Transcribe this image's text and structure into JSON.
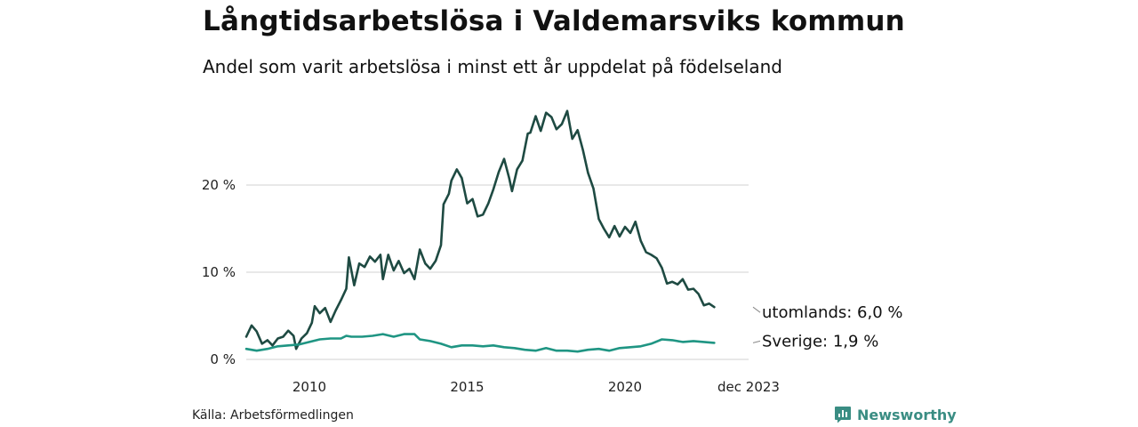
{
  "header": {
    "title": "Långtidsarbetslösa i Valdemarsviks kommun",
    "subtitle": "Andel som varit arbetslösa i minst ett år uppdelat på födelseland"
  },
  "footer": {
    "source": "Källa: Arbetsförmedlingen",
    "brand": "Newsworthy"
  },
  "colors": {
    "utomlands": "#1e4a42",
    "sverige": "#1f9583",
    "grid": "#d9d9d9",
    "brand": "#3a8d83"
  },
  "chart_data": {
    "type": "line",
    "title": "Långtidsarbetslösa i Valdemarsviks kommun",
    "subtitle": "Andel som varit arbetslösa i minst ett år uppdelat på födelseland",
    "xlabel": "",
    "ylabel": "",
    "x_range": [
      2008.0,
      2023.917
    ],
    "ylim": [
      0,
      30
    ],
    "y_ticks": [
      0,
      10,
      20
    ],
    "y_tick_labels": [
      "0 %",
      "10 %",
      "20 %"
    ],
    "x_ticks": [
      2010.0,
      2015.0,
      2020.0,
      2023.917
    ],
    "x_tick_labels": [
      "2010",
      "2015",
      "2020",
      "dec 2023"
    ],
    "grid": true,
    "series": [
      {
        "name": "utomlands",
        "end_label": "utomlands: 6,0 %",
        "points": [
          [
            2008.0,
            2.6
          ],
          [
            2008.17,
            3.9
          ],
          [
            2008.33,
            3.2
          ],
          [
            2008.5,
            1.8
          ],
          [
            2008.67,
            2.2
          ],
          [
            2008.83,
            1.6
          ],
          [
            2009.0,
            2.4
          ],
          [
            2009.17,
            2.6
          ],
          [
            2009.33,
            3.3
          ],
          [
            2009.5,
            2.7
          ],
          [
            2009.58,
            1.2
          ],
          [
            2009.75,
            2.4
          ],
          [
            2009.92,
            3.0
          ],
          [
            2010.08,
            4.2
          ],
          [
            2010.17,
            6.1
          ],
          [
            2010.33,
            5.3
          ],
          [
            2010.5,
            5.9
          ],
          [
            2010.67,
            4.3
          ],
          [
            2010.83,
            5.6
          ],
          [
            2011.0,
            6.8
          ],
          [
            2011.17,
            8.1
          ],
          [
            2011.25,
            11.7
          ],
          [
            2011.42,
            8.5
          ],
          [
            2011.58,
            11.0
          ],
          [
            2011.75,
            10.6
          ],
          [
            2011.92,
            11.8
          ],
          [
            2012.08,
            11.2
          ],
          [
            2012.25,
            12.0
          ],
          [
            2012.33,
            9.2
          ],
          [
            2012.5,
            12.0
          ],
          [
            2012.67,
            10.2
          ],
          [
            2012.83,
            11.3
          ],
          [
            2013.0,
            9.9
          ],
          [
            2013.17,
            10.4
          ],
          [
            2013.33,
            9.2
          ],
          [
            2013.5,
            12.6
          ],
          [
            2013.67,
            11.0
          ],
          [
            2013.83,
            10.4
          ],
          [
            2014.0,
            11.3
          ],
          [
            2014.17,
            13.1
          ],
          [
            2014.25,
            17.8
          ],
          [
            2014.42,
            19.0
          ],
          [
            2014.5,
            20.5
          ],
          [
            2014.67,
            21.8
          ],
          [
            2014.83,
            20.8
          ],
          [
            2015.0,
            17.9
          ],
          [
            2015.17,
            18.4
          ],
          [
            2015.33,
            16.4
          ],
          [
            2015.5,
            16.6
          ],
          [
            2015.67,
            17.9
          ],
          [
            2015.83,
            19.5
          ],
          [
            2016.0,
            21.5
          ],
          [
            2016.17,
            23.0
          ],
          [
            2016.33,
            20.8
          ],
          [
            2016.42,
            19.3
          ],
          [
            2016.58,
            21.8
          ],
          [
            2016.75,
            22.8
          ],
          [
            2016.92,
            25.9
          ],
          [
            2017.0,
            26.0
          ],
          [
            2017.17,
            27.9
          ],
          [
            2017.33,
            26.2
          ],
          [
            2017.5,
            28.3
          ],
          [
            2017.67,
            27.8
          ],
          [
            2017.83,
            26.4
          ],
          [
            2018.0,
            27.0
          ],
          [
            2018.17,
            28.5
          ],
          [
            2018.33,
            25.3
          ],
          [
            2018.5,
            26.3
          ],
          [
            2018.67,
            24.0
          ],
          [
            2018.83,
            21.4
          ],
          [
            2019.0,
            19.6
          ],
          [
            2019.17,
            16.1
          ],
          [
            2019.33,
            15.0
          ],
          [
            2019.5,
            14.0
          ],
          [
            2019.67,
            15.3
          ],
          [
            2019.83,
            14.1
          ],
          [
            2020.0,
            15.2
          ],
          [
            2020.17,
            14.5
          ],
          [
            2020.33,
            15.8
          ],
          [
            2020.5,
            13.6
          ],
          [
            2020.67,
            12.3
          ],
          [
            2020.83,
            12.0
          ],
          [
            2021.0,
            11.6
          ],
          [
            2021.17,
            10.5
          ],
          [
            2021.33,
            8.7
          ],
          [
            2021.5,
            8.9
          ],
          [
            2021.67,
            8.6
          ],
          [
            2021.83,
            9.2
          ],
          [
            2022.0,
            8.0
          ],
          [
            2022.17,
            8.1
          ],
          [
            2022.33,
            7.5
          ],
          [
            2022.5,
            6.2
          ],
          [
            2022.67,
            6.4
          ],
          [
            2022.83,
            6.0
          ]
        ]
      },
      {
        "name": "Sverige",
        "end_label": "Sverige: 1,9 %",
        "points": [
          [
            2008.0,
            1.2
          ],
          [
            2008.33,
            1.0
          ],
          [
            2008.67,
            1.2
          ],
          [
            2009.0,
            1.5
          ],
          [
            2009.33,
            1.6
          ],
          [
            2009.67,
            1.7
          ],
          [
            2010.0,
            2.0
          ],
          [
            2010.33,
            2.3
          ],
          [
            2010.67,
            2.4
          ],
          [
            2011.0,
            2.4
          ],
          [
            2011.17,
            2.7
          ],
          [
            2011.33,
            2.6
          ],
          [
            2011.67,
            2.6
          ],
          [
            2012.0,
            2.7
          ],
          [
            2012.33,
            2.9
          ],
          [
            2012.67,
            2.6
          ],
          [
            2013.0,
            2.9
          ],
          [
            2013.33,
            2.9
          ],
          [
            2013.5,
            2.3
          ],
          [
            2013.83,
            2.1
          ],
          [
            2014.17,
            1.8
          ],
          [
            2014.5,
            1.4
          ],
          [
            2014.83,
            1.6
          ],
          [
            2015.17,
            1.6
          ],
          [
            2015.5,
            1.5
          ],
          [
            2015.83,
            1.6
          ],
          [
            2016.17,
            1.4
          ],
          [
            2016.5,
            1.3
          ],
          [
            2016.83,
            1.1
          ],
          [
            2017.17,
            1.0
          ],
          [
            2017.5,
            1.3
          ],
          [
            2017.83,
            1.0
          ],
          [
            2018.17,
            1.0
          ],
          [
            2018.5,
            0.9
          ],
          [
            2018.83,
            1.1
          ],
          [
            2019.17,
            1.2
          ],
          [
            2019.5,
            1.0
          ],
          [
            2019.83,
            1.3
          ],
          [
            2020.17,
            1.4
          ],
          [
            2020.5,
            1.5
          ],
          [
            2020.83,
            1.8
          ],
          [
            2021.17,
            2.3
          ],
          [
            2021.5,
            2.2
          ],
          [
            2021.83,
            2.0
          ],
          [
            2022.17,
            2.1
          ],
          [
            2022.5,
            2.0
          ],
          [
            2022.83,
            1.9
          ]
        ]
      }
    ]
  }
}
